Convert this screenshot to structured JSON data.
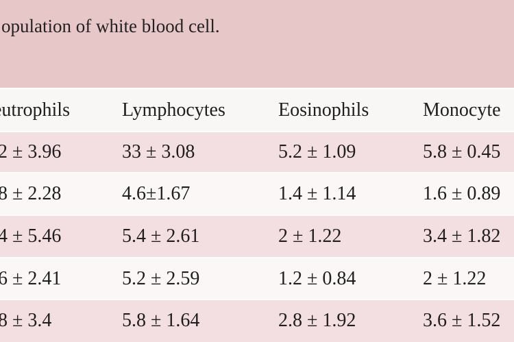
{
  "caption": "opulation of white blood cell.",
  "table": {
    "headers": [
      "eutrophils",
      "Lymphocytes",
      "Eosinophils",
      "Monocyte"
    ],
    "rows": [
      [
        ".2 ±  3.96",
        "33 ± 3.08",
        "5.2 ± 1.09",
        "5.8 ± 0.45"
      ],
      [
        ".8 ± 2.28",
        "4.6±1.67",
        "1.4 ± 1.14",
        "1.6 ± 0.89"
      ],
      [
        ".4 ± 5.46",
        "5.4 ± 2.61",
        "2 ± 1.22",
        "3.4 ± 1.82"
      ],
      [
        ".6 ± 2.41",
        "5.2 ± 2.59",
        "1.2 ± 0.84",
        "2 ± 1.22"
      ],
      [
        ".8 ± 3.4",
        "5.8 ± 1.64",
        "2.8 ± 1.92",
        "3.6 ± 1.52"
      ]
    ]
  }
}
